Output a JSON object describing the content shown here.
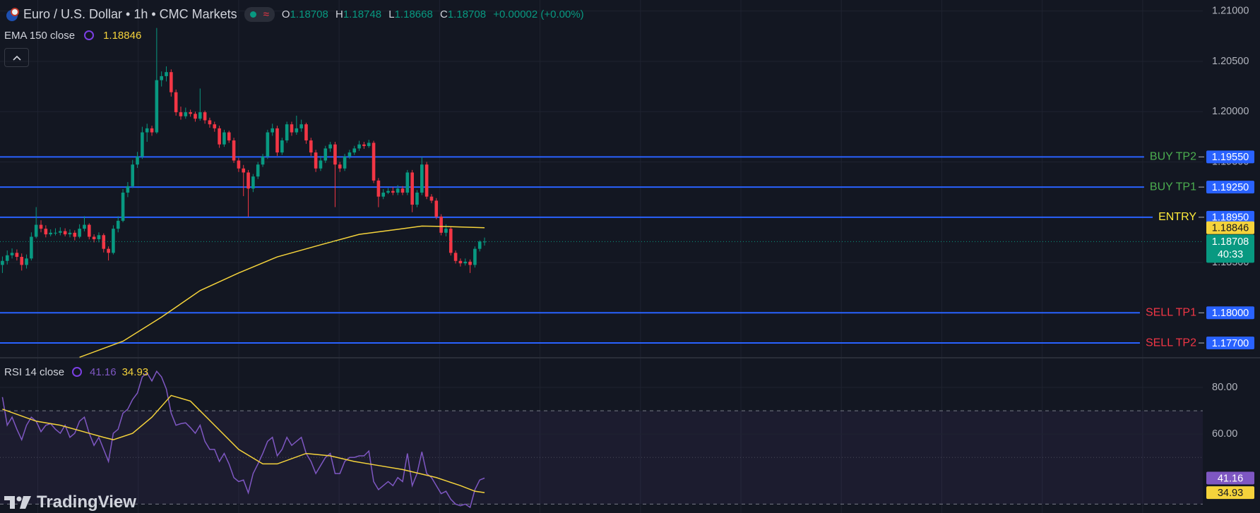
{
  "chart_data": [
    {
      "type": "candlestick",
      "title": "Euro / U.S. Dollar • 1h • CMC Markets",
      "ohlc_labels": [
        "O",
        "H",
        "L",
        "C"
      ],
      "change_label": "+0.00002 (+0.00%)",
      "countdown": "40:33",
      "up_color": "#089981",
      "down_color": "#f23645",
      "level_line_color": "#2962ff",
      "ylim": [
        1.1756,
        1.2111
      ],
      "yticks": [
        {
          "value": 1.21,
          "label": "1.21000"
        },
        {
          "value": 1.205,
          "label": "1.20500"
        },
        {
          "value": 1.2,
          "label": "1.20000"
        },
        {
          "value": 1.195,
          "label": "1.19500"
        },
        {
          "value": 1.185,
          "label": "1.18500"
        }
      ],
      "grid": true,
      "ohlc": [
        [
          1.18476,
          1.1856,
          1.18396,
          1.18516
        ],
        [
          1.18516,
          1.1862,
          1.1848,
          1.18572
        ],
        [
          1.18572,
          1.1864,
          1.1854,
          1.18596
        ],
        [
          1.18596,
          1.1863,
          1.1852,
          1.18556
        ],
        [
          1.18556,
          1.1859,
          1.1842,
          1.18476
        ],
        [
          1.18476,
          1.1858,
          1.1844,
          1.1854
        ],
        [
          1.1854,
          1.188,
          1.1852,
          1.18756
        ],
        [
          1.18756,
          1.19051,
          1.1874,
          1.18875
        ],
        [
          1.18875,
          1.1892,
          1.188,
          1.18836
        ],
        [
          1.18836,
          1.1887,
          1.1875,
          1.1878
        ],
        [
          1.1878,
          1.1883,
          1.1876,
          1.18796
        ],
        [
          1.18796,
          1.1884,
          1.1877,
          1.18796
        ],
        [
          1.18796,
          1.1885,
          1.1877,
          1.18812
        ],
        [
          1.18812,
          1.1884,
          1.1876,
          1.1878
        ],
        [
          1.1878,
          1.1883,
          1.1875,
          1.18796
        ],
        [
          1.18796,
          1.1882,
          1.1872,
          1.18756
        ],
        [
          1.18756,
          1.1888,
          1.1874,
          1.18836
        ],
        [
          1.18836,
          1.1896,
          1.1881,
          1.18875
        ],
        [
          1.18875,
          1.1889,
          1.1873,
          1.18756
        ],
        [
          1.18756,
          1.1878,
          1.187,
          1.18732
        ],
        [
          1.18732,
          1.188,
          1.187,
          1.18772
        ],
        [
          1.18772,
          1.1879,
          1.186,
          1.18636
        ],
        [
          1.18636,
          1.1866,
          1.1852,
          1.18596
        ],
        [
          1.18596,
          1.1887,
          1.1858,
          1.18836
        ],
        [
          1.18836,
          1.1896,
          1.188,
          1.18915
        ],
        [
          1.18915,
          1.1923,
          1.189,
          1.19195
        ],
        [
          1.19195,
          1.193,
          1.1915,
          1.19259
        ],
        [
          1.19259,
          1.1952,
          1.1924,
          1.19474
        ],
        [
          1.19474,
          1.196,
          1.1944,
          1.19554
        ],
        [
          1.19554,
          1.1985,
          1.1953,
          1.19794
        ],
        [
          1.19794,
          1.1988,
          1.197,
          1.19834
        ],
        [
          1.19834,
          1.1986,
          1.1976,
          1.19794
        ],
        [
          1.19794,
          1.20832,
          1.1978,
          1.20313
        ],
        [
          1.20313,
          1.204,
          1.2025,
          1.20353
        ],
        [
          1.20353,
          1.2045,
          1.203,
          1.20393
        ],
        [
          1.20393,
          1.2042,
          1.2015,
          1.20193
        ],
        [
          1.20193,
          1.2022,
          1.1996,
          1.19994
        ],
        [
          1.19994,
          1.2005,
          1.1992,
          1.19954
        ],
        [
          1.19954,
          1.2004,
          1.1993,
          1.19994
        ],
        [
          1.19994,
          1.2002,
          1.1995,
          1.19978
        ],
        [
          1.19978,
          1.2,
          1.199,
          1.1993
        ],
        [
          1.1993,
          1.2023,
          1.1991,
          1.19994
        ],
        [
          1.19994,
          1.2001,
          1.1988,
          1.19914
        ],
        [
          1.19914,
          1.1994,
          1.1984,
          1.19874
        ],
        [
          1.19874,
          1.199,
          1.198,
          1.19834
        ],
        [
          1.19834,
          1.1986,
          1.1964,
          1.19674
        ],
        [
          1.19674,
          1.1982,
          1.1965,
          1.19794
        ],
        [
          1.19794,
          1.1981,
          1.1969,
          1.19714
        ],
        [
          1.19714,
          1.1974,
          1.1949,
          1.19514
        ],
        [
          1.19514,
          1.1954,
          1.194,
          1.19435
        ],
        [
          1.19435,
          1.1947,
          1.1916,
          1.19395
        ],
        [
          1.19395,
          1.1942,
          1.18955,
          1.19235
        ],
        [
          1.19235,
          1.1938,
          1.192,
          1.19355
        ],
        [
          1.19355,
          1.195,
          1.1933,
          1.19474
        ],
        [
          1.19474,
          1.1958,
          1.1945,
          1.19554
        ],
        [
          1.19554,
          1.1982,
          1.1953,
          1.19794
        ],
        [
          1.19794,
          1.1988,
          1.1976,
          1.19834
        ],
        [
          1.19834,
          1.1986,
          1.1956,
          1.19594
        ],
        [
          1.19594,
          1.1974,
          1.1957,
          1.19714
        ],
        [
          1.19714,
          1.199,
          1.1969,
          1.19874
        ],
        [
          1.19874,
          1.199,
          1.1976,
          1.19794
        ],
        [
          1.19794,
          1.1996,
          1.1977,
          1.19834
        ],
        [
          1.19834,
          1.1992,
          1.198,
          1.19874
        ],
        [
          1.19874,
          1.1989,
          1.1968,
          1.19714
        ],
        [
          1.19714,
          1.1974,
          1.1956,
          1.19594
        ],
        [
          1.19594,
          1.1962,
          1.194,
          1.19435
        ],
        [
          1.19435,
          1.1956,
          1.1941,
          1.19514
        ],
        [
          1.19514,
          1.1966,
          1.1949,
          1.19634
        ],
        [
          1.19634,
          1.197,
          1.196,
          1.19674
        ],
        [
          1.19674,
          1.197,
          1.19051,
          1.19474
        ],
        [
          1.19474,
          1.195,
          1.194,
          1.19435
        ],
        [
          1.19435,
          1.1958,
          1.1941,
          1.19554
        ],
        [
          1.19554,
          1.1962,
          1.1953,
          1.19594
        ],
        [
          1.19594,
          1.1966,
          1.1957,
          1.19634
        ],
        [
          1.19634,
          1.1971,
          1.1961,
          1.19674
        ],
        [
          1.19674,
          1.197,
          1.1963,
          1.19658
        ],
        [
          1.19658,
          1.1972,
          1.1964,
          1.1969
        ],
        [
          1.1969,
          1.1971,
          1.1929,
          1.19315
        ],
        [
          1.19315,
          1.1934,
          1.1905,
          1.19155
        ],
        [
          1.19155,
          1.1923,
          1.1913,
          1.19195
        ],
        [
          1.19195,
          1.1924,
          1.1918,
          1.19211
        ],
        [
          1.19211,
          1.1925,
          1.1917,
          1.19195
        ],
        [
          1.19195,
          1.1927,
          1.1917,
          1.19235
        ],
        [
          1.19235,
          1.1926,
          1.1917,
          1.19195
        ],
        [
          1.19195,
          1.1942,
          1.1917,
          1.19395
        ],
        [
          1.19395,
          1.1942,
          1.19,
          1.19075
        ],
        [
          1.19075,
          1.1922,
          1.1905,
          1.19195
        ],
        [
          1.19195,
          1.1955,
          1.1917,
          1.19474
        ],
        [
          1.19474,
          1.195,
          1.1913,
          1.19155
        ],
        [
          1.19155,
          1.1918,
          1.1909,
          1.19115
        ],
        [
          1.19115,
          1.1914,
          1.1893,
          1.18955
        ],
        [
          1.18955,
          1.1898,
          1.1877,
          1.18796
        ],
        [
          1.18796,
          1.1888,
          1.1876,
          1.18836
        ],
        [
          1.18836,
          1.1886,
          1.1857,
          1.18596
        ],
        [
          1.18596,
          1.1862,
          1.1849,
          1.18516
        ],
        [
          1.18516,
          1.1854,
          1.1846,
          1.18492
        ],
        [
          1.18492,
          1.1854,
          1.1847,
          1.18508
        ],
        [
          1.18508,
          1.1853,
          1.18396,
          1.18476
        ],
        [
          1.18476,
          1.1866,
          1.1845,
          1.18636
        ],
        [
          1.18636,
          1.1872,
          1.1861,
          1.18708
        ],
        [
          1.18708,
          1.18748,
          1.18668,
          1.18708
        ]
      ],
      "series": [
        {
          "name": "EMA 150 close",
          "color": "#f5d33b",
          "x": [
            16,
            25,
            33,
            41,
            49,
            57,
            66,
            74,
            82,
            87,
            92,
            100
          ],
          "values": [
            1.17558,
            1.17717,
            1.17957,
            1.18221,
            1.18396,
            1.18556,
            1.18676,
            1.1878,
            1.1883,
            1.18862,
            1.18858,
            1.18846
          ]
        }
      ],
      "levels": [
        {
          "name": "BUY TP2",
          "value": 1.1955,
          "value_label": "1.19550",
          "color": "#4caf50"
        },
        {
          "name": "BUY TP1",
          "value": 1.1925,
          "value_label": "1.19250",
          "color": "#4caf50"
        },
        {
          "name": "ENTRY",
          "value": 1.1895,
          "value_label": "1.18950",
          "color": "#ffeb3b"
        },
        {
          "name": "SELL TP1",
          "value": 1.18,
          "value_label": "1.18000",
          "color": "#f23645"
        },
        {
          "name": "SELL TP2",
          "value": 1.177,
          "value_label": "1.17700",
          "color": "#f23645"
        }
      ]
    },
    {
      "type": "line",
      "ylim": [
        26.2,
        92.4
      ],
      "yticks": [
        {
          "value": 80,
          "label": "80.00"
        },
        {
          "value": 60,
          "label": "60.00"
        }
      ],
      "bands": [
        30,
        70
      ],
      "midline": 50,
      "series": [
        {
          "name": "RSI 14 close",
          "color": "#7e57c2",
          "values": [
            75.86,
            63.79,
            67.24,
            62.07,
            57.59,
            63.79,
            67.24,
            65.52,
            61.04,
            63.79,
            64.48,
            62.07,
            60.35,
            63.79,
            58.62,
            60.35,
            65.52,
            67.24,
            60.35,
            55.17,
            58.62,
            53.45,
            48.28,
            60.35,
            62.07,
            68.97,
            70.69,
            74.83,
            77.59,
            84.48,
            86.21,
            82.76,
            86.9,
            84.48,
            79.31,
            68.97,
            63.79,
            64.48,
            64.83,
            62.76,
            60.35,
            63.79,
            56.9,
            53.45,
            53.45,
            48.28,
            51.72,
            47.24,
            41.38,
            39.66,
            40.35,
            34.83,
            43.1,
            47.24,
            51.72,
            56.9,
            58.62,
            50.69,
            53.45,
            58.62,
            55.17,
            56.9,
            58.62,
            51.72,
            48.28,
            43.1,
            46.55,
            50.0,
            51.72,
            43.1,
            43.1,
            48.28,
            50.0,
            50.0,
            50.69,
            50.69,
            52.76,
            39.66,
            36.21,
            37.93,
            39.66,
            37.93,
            41.38,
            39.66,
            51.72,
            37.93,
            43.1,
            52.41,
            43.1,
            41.38,
            37.93,
            34.48,
            35.52,
            32.07,
            30.0,
            29.31,
            30.0,
            28.62,
            36.21,
            40.35,
            41.16
          ]
        },
        {
          "color": "#f5d33b",
          "x": [
            0,
            7,
            12,
            21,
            23,
            27,
            31,
            35,
            39,
            44,
            49,
            54,
            57,
            63,
            68,
            73,
            78,
            83,
            90,
            95,
            98,
            100
          ],
          "values": [
            70.69,
            65.52,
            63.79,
            58.62,
            57.59,
            60.35,
            67.24,
            76.55,
            74.14,
            63.79,
            53.45,
            47.24,
            47.24,
            51.72,
            50.69,
            48.28,
            46.55,
            44.83,
            41.38,
            37.93,
            35.52,
            34.93
          ]
        }
      ]
    }
  ],
  "watermark": "TradingView"
}
